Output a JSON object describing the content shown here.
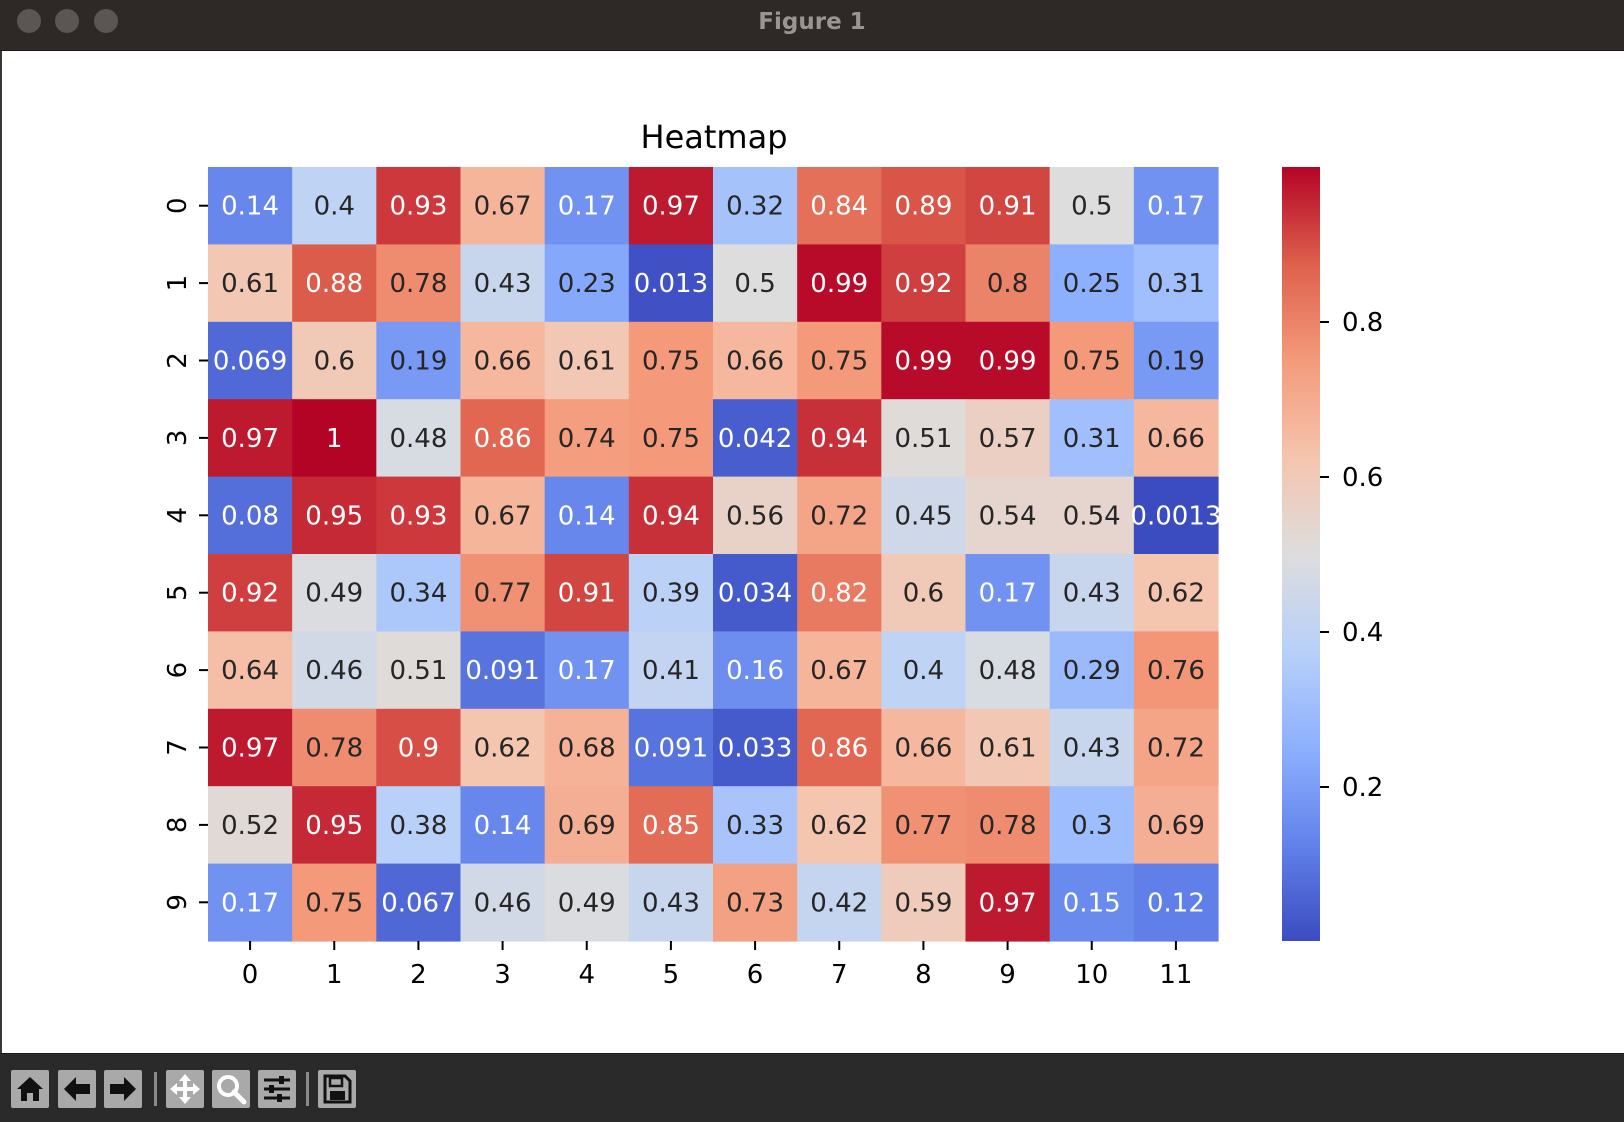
{
  "window": {
    "title": "Figure 1"
  },
  "toolbar": {
    "buttons": [
      {
        "name": "home",
        "icon": "home-icon"
      },
      {
        "name": "back",
        "icon": "arrow-left-icon"
      },
      {
        "name": "forward",
        "icon": "arrow-right-icon"
      },
      {
        "name": "pan",
        "icon": "move-icon"
      },
      {
        "name": "zoom",
        "icon": "magnifier-icon"
      },
      {
        "name": "configure",
        "icon": "sliders-icon"
      },
      {
        "name": "save",
        "icon": "floppy-disk-icon"
      }
    ]
  },
  "chart_data": {
    "type": "heatmap",
    "title": "Heatmap",
    "colormap": "coolwarm",
    "x_categories": [
      "0",
      "1",
      "2",
      "3",
      "4",
      "5",
      "6",
      "7",
      "8",
      "9",
      "10",
      "11"
    ],
    "y_categories": [
      "0",
      "1",
      "2",
      "3",
      "4",
      "5",
      "6",
      "7",
      "8",
      "9"
    ],
    "values": [
      [
        0.14,
        0.4,
        0.93,
        0.67,
        0.17,
        0.97,
        0.32,
        0.84,
        0.89,
        0.91,
        0.5,
        0.17
      ],
      [
        0.61,
        0.88,
        0.78,
        0.43,
        0.23,
        0.013,
        0.5,
        0.99,
        0.92,
        0.8,
        0.25,
        0.31
      ],
      [
        0.069,
        0.6,
        0.19,
        0.66,
        0.61,
        0.75,
        0.66,
        0.75,
        0.99,
        0.99,
        0.75,
        0.19
      ],
      [
        0.97,
        1,
        0.48,
        0.86,
        0.74,
        0.75,
        0.042,
        0.94,
        0.51,
        0.57,
        0.31,
        0.66
      ],
      [
        0.08,
        0.95,
        0.93,
        0.67,
        0.14,
        0.94,
        0.56,
        0.72,
        0.45,
        0.54,
        0.54,
        0.0013
      ],
      [
        0.92,
        0.49,
        0.34,
        0.77,
        0.91,
        0.39,
        0.034,
        0.82,
        0.6,
        0.17,
        0.43,
        0.62
      ],
      [
        0.64,
        0.46,
        0.51,
        0.091,
        0.17,
        0.41,
        0.16,
        0.67,
        0.4,
        0.48,
        0.29,
        0.76
      ],
      [
        0.97,
        0.78,
        0.9,
        0.62,
        0.68,
        0.091,
        0.033,
        0.86,
        0.66,
        0.61,
        0.43,
        0.72
      ],
      [
        0.52,
        0.95,
        0.38,
        0.14,
        0.69,
        0.85,
        0.33,
        0.62,
        0.77,
        0.78,
        0.3,
        0.69
      ],
      [
        0.17,
        0.75,
        0.067,
        0.46,
        0.49,
        0.43,
        0.73,
        0.42,
        0.59,
        0.97,
        0.15,
        0.12
      ]
    ],
    "colorbar": {
      "range": [
        0.0013,
        1.0
      ],
      "ticks": [
        0.2,
        0.4,
        0.6,
        0.8
      ]
    },
    "annotate": true
  }
}
